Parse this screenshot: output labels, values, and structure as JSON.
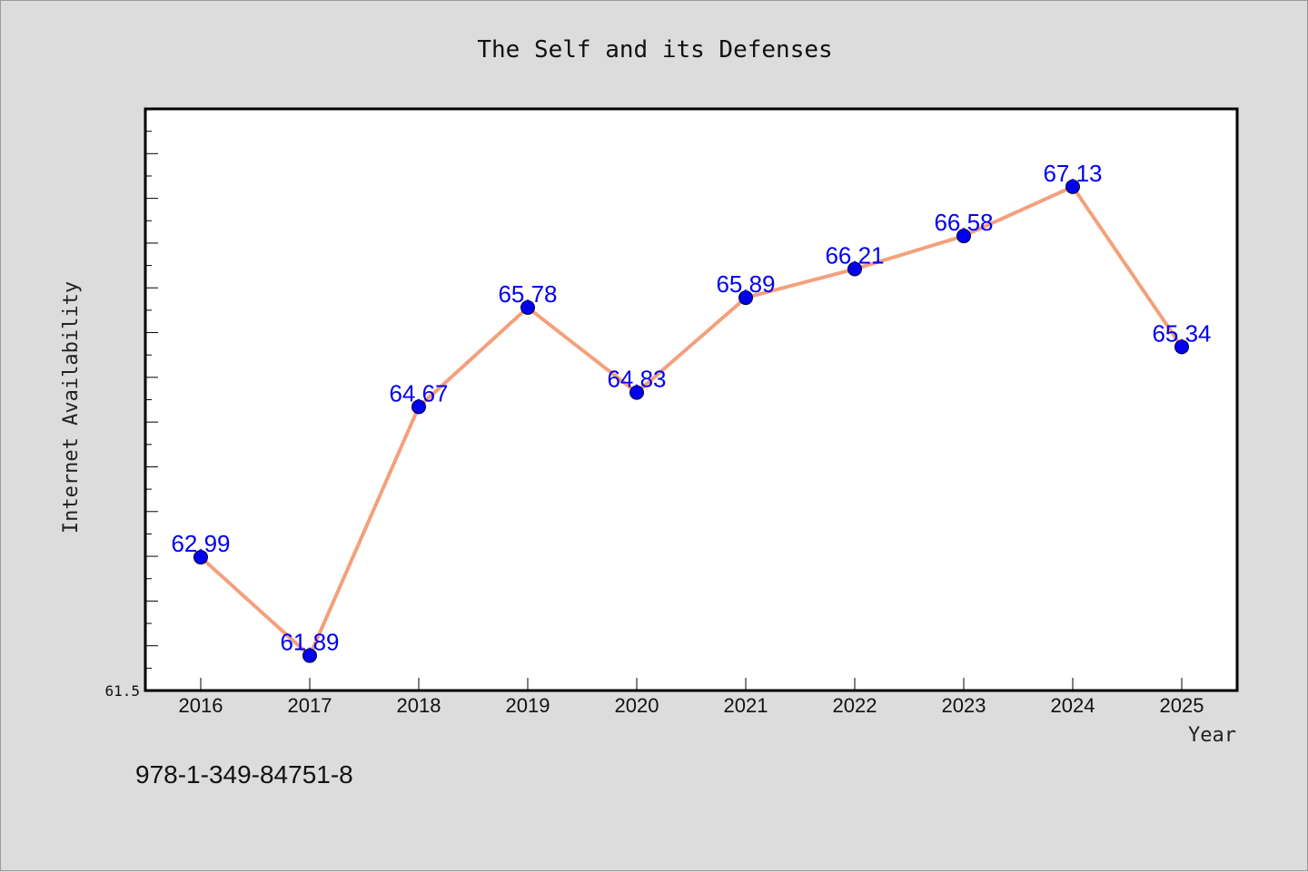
{
  "chart_data": {
    "type": "line",
    "title": "The Self and its Defenses",
    "xlabel": "Year",
    "ylabel": "Internet Availability",
    "categories": [
      "2016",
      "2017",
      "2018",
      "2019",
      "2020",
      "2021",
      "2022",
      "2023",
      "2024",
      "2025"
    ],
    "series": [
      {
        "values": [
          62.99,
          61.89,
          64.67,
          65.78,
          64.83,
          65.89,
          66.21,
          66.58,
          67.13,
          65.34
        ]
      }
    ],
    "data_labels": [
      "62.99",
      "61.89",
      "64.67",
      "65.78",
      "64.83",
      "65.89",
      "66.21",
      "66.58",
      "67.13",
      "65.34"
    ],
    "ylim": [
      61.5,
      68.0
    ],
    "y_tick_labels": [
      "61.5"
    ],
    "grid": false,
    "colors": {
      "line": "#f4a07c",
      "marker": "#0000ee",
      "label": "#0000ee",
      "frame_bg": "#dcdcdc",
      "plot_bg": "#ffffff"
    }
  },
  "footer": {
    "isbn": "978-1-349-84751-8"
  }
}
